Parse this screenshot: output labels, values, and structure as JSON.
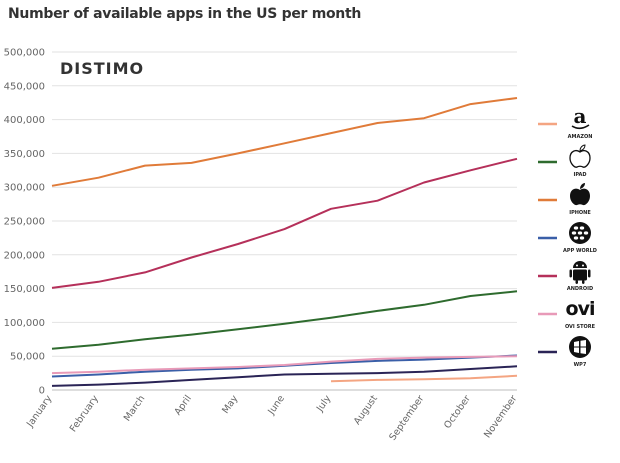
{
  "chart_data": {
    "type": "line",
    "title": "Number of available apps in the US per month",
    "brand": "DISTIMO",
    "categories": [
      "January",
      "February",
      "March",
      "April",
      "May",
      "June",
      "July",
      "August",
      "September",
      "October",
      "November"
    ],
    "ylim": [
      0,
      500000
    ],
    "yticks": [
      "0",
      "50,000",
      "100,000",
      "150,000",
      "200,000",
      "250,000",
      "300,000",
      "350,000",
      "400,000",
      "450,000",
      "500,000"
    ],
    "grid": true,
    "legend_position": "right",
    "series": [
      {
        "name": "AMAZON",
        "icon": "amazon-icon",
        "color": "#f4a582",
        "values": [
          null,
          null,
          null,
          null,
          null,
          null,
          13000,
          15000,
          16000,
          17500,
          21000
        ]
      },
      {
        "name": "IPAD",
        "icon": "apple-outline-icon",
        "color": "#2e6b2e",
        "values": [
          61000,
          67000,
          75000,
          82000,
          90000,
          98000,
          107000,
          117000,
          126000,
          139000,
          146000
        ]
      },
      {
        "name": "IPHONE",
        "icon": "apple-icon",
        "color": "#e07b39",
        "values": [
          302000,
          314000,
          332000,
          336000,
          350000,
          365000,
          380000,
          395000,
          402000,
          423000,
          432000
        ]
      },
      {
        "name": "APP WORLD",
        "icon": "blackberry-icon",
        "color": "#3a5fa8",
        "values": [
          20000,
          23000,
          27000,
          30000,
          32000,
          36000,
          40000,
          43000,
          45000,
          48000,
          51000
        ]
      },
      {
        "name": "ANDROID",
        "icon": "android-icon",
        "color": "#b5305a",
        "values": [
          151000,
          160000,
          174000,
          196000,
          216000,
          238000,
          268000,
          280000,
          307000,
          325000,
          342000
        ]
      },
      {
        "name": "OVI STORE",
        "icon": "ovi-icon",
        "color": "#e89ab8",
        "values": [
          25000,
          27000,
          30000,
          32000,
          34000,
          37000,
          42000,
          46000,
          48000,
          49000,
          50000
        ]
      },
      {
        "name": "WP7",
        "icon": "windows-icon",
        "color": "#2a2456",
        "values": [
          6000,
          8000,
          11000,
          15000,
          19000,
          23000,
          24000,
          25000,
          27000,
          31000,
          35000
        ]
      }
    ]
  }
}
